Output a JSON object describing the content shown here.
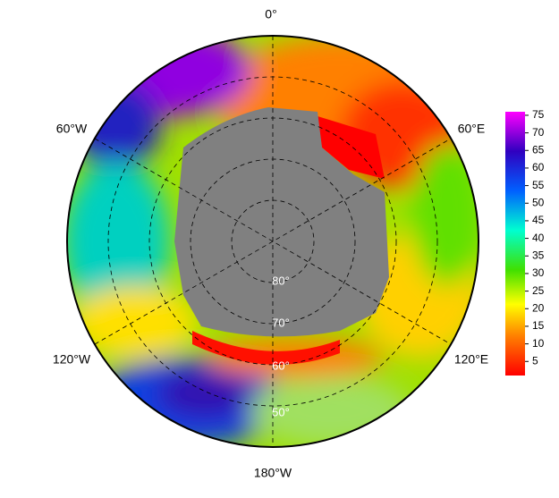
{
  "map": {
    "longitude_labels": [
      "0°",
      "60°E",
      "120°E",
      "180°W",
      "120°W",
      "60°W"
    ],
    "latitude_labels": [
      "80°",
      "70°",
      "60°",
      "50°"
    ],
    "colorbar": {
      "lim": [
        1,
        76
      ],
      "ticks": [
        5,
        10,
        15,
        20,
        25,
        30,
        35,
        40,
        45,
        50,
        55,
        60,
        65,
        70,
        75
      ]
    }
  }
}
